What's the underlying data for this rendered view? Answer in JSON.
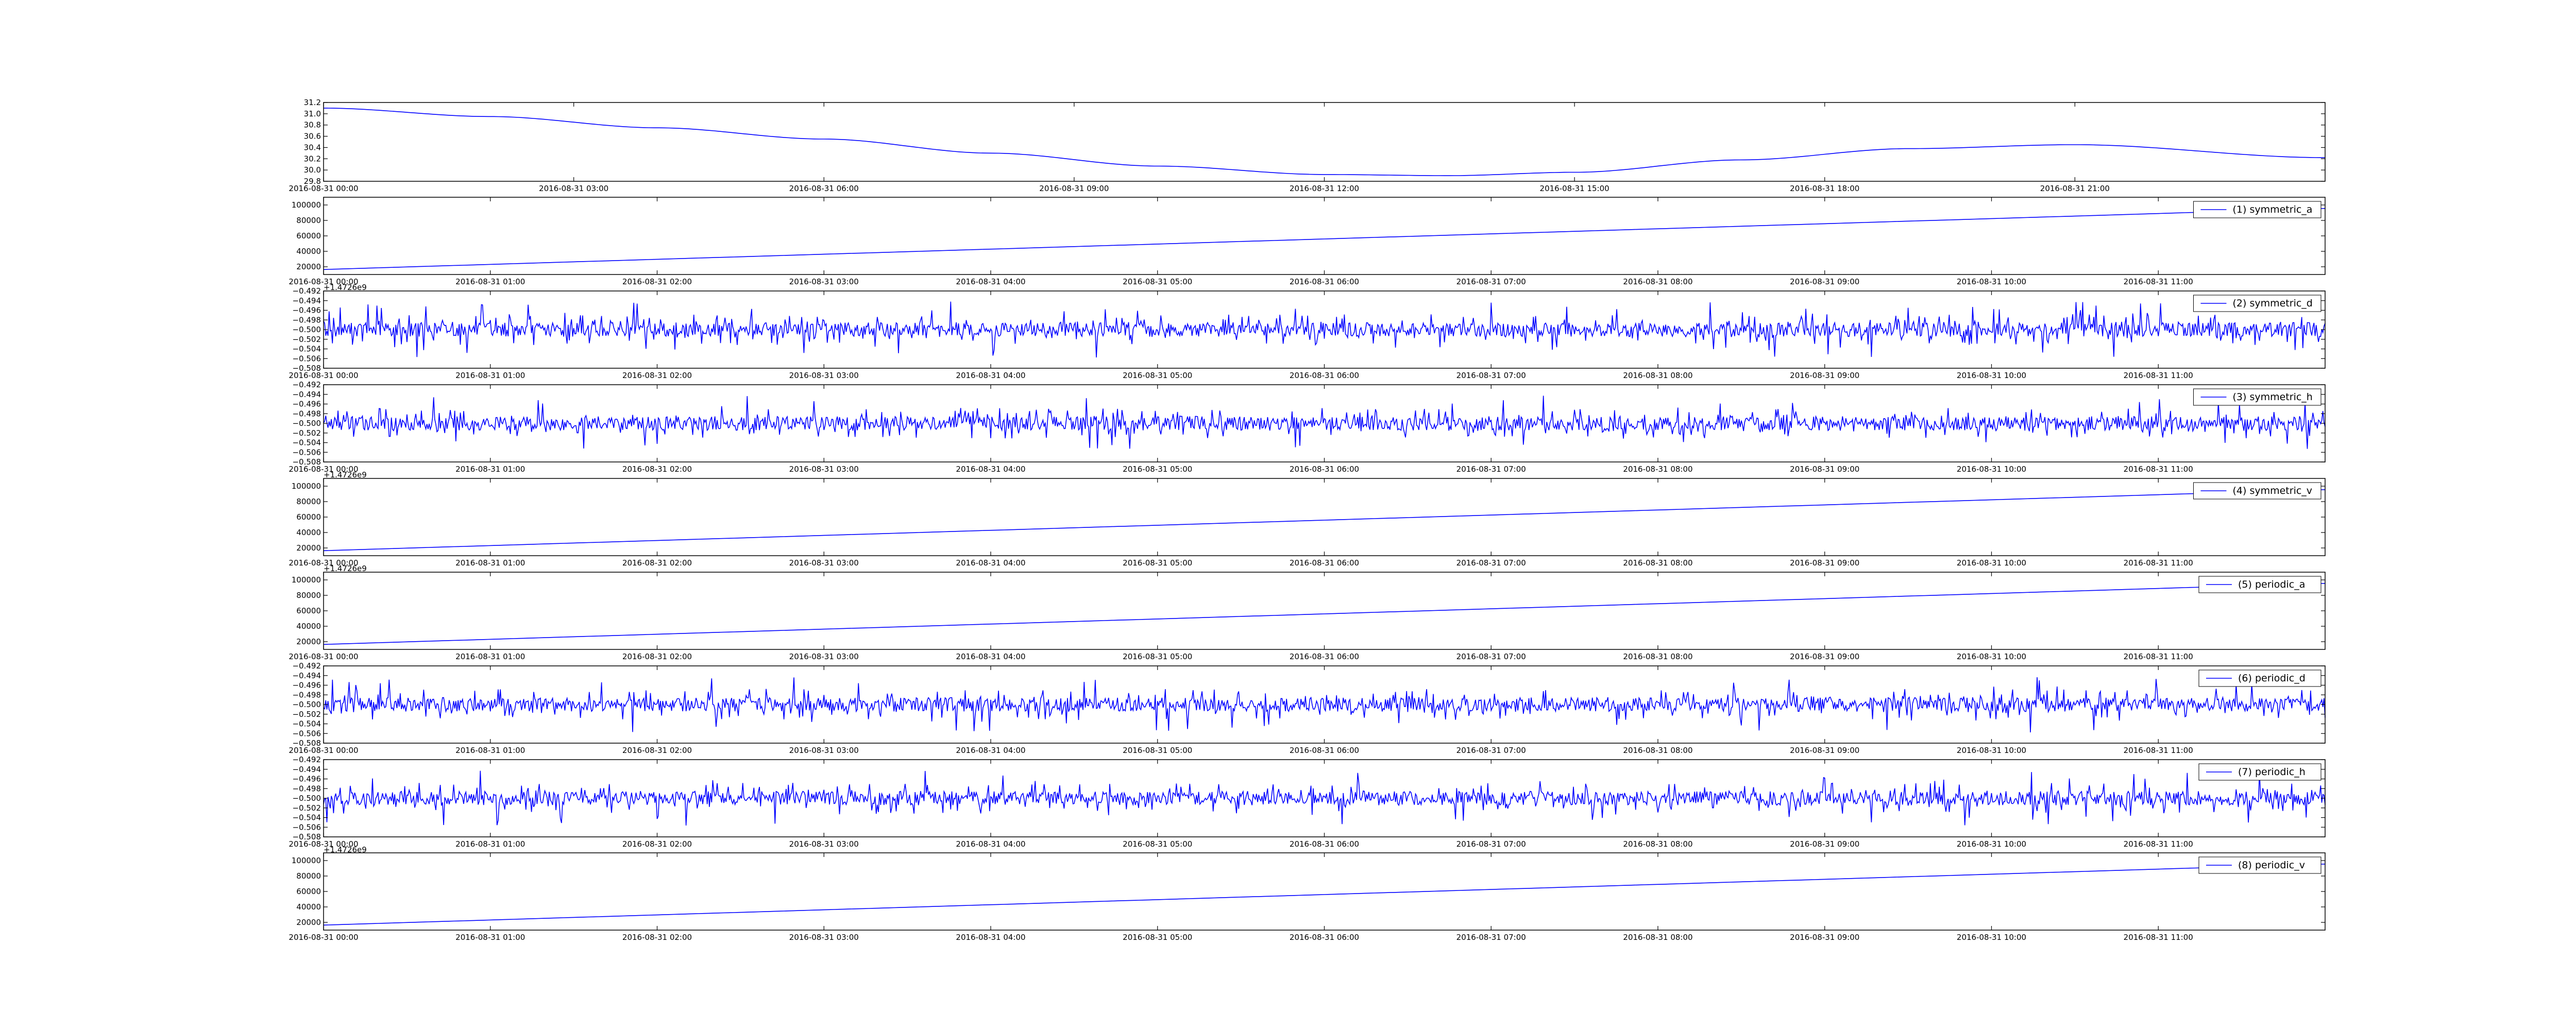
{
  "chart_data": [
    {
      "type": "line",
      "x_start": "2016-08-31 00:00",
      "x_end": "2016-09-01 00:00",
      "x_ticks": [
        "2016-08-31 00:00",
        "2016-08-31 03:00",
        "2016-08-31 06:00",
        "2016-08-31 09:00",
        "2016-08-31 12:00",
        "2016-08-31 15:00",
        "2016-08-31 18:00",
        "2016-08-31 21:00"
      ],
      "y_ticks": [
        "29.8",
        "30.0",
        "30.2",
        "30.4",
        "30.6",
        "30.8",
        "31.0",
        "31.2"
      ],
      "ylim": [
        29.8,
        31.2
      ],
      "offset_text": "",
      "series": [
        {
          "name": "",
          "color": "#0000ff",
          "x_hours": [
            0,
            2,
            4,
            6,
            8,
            10,
            12,
            13.5,
            15,
            17,
            19,
            21,
            24
          ],
          "y": [
            31.1,
            30.95,
            30.75,
            30.55,
            30.3,
            30.07,
            29.92,
            29.9,
            29.96,
            30.18,
            30.38,
            30.45,
            30.22
          ]
        }
      ],
      "legend": null
    },
    {
      "type": "line",
      "x_start": "2016-08-31 00:00",
      "x_end": "2016-08-31 12:00",
      "x_ticks": [
        "2016-08-31 00:00",
        "2016-08-31 01:00",
        "2016-08-31 02:00",
        "2016-08-31 03:00",
        "2016-08-31 04:00",
        "2016-08-31 05:00",
        "2016-08-31 06:00",
        "2016-08-31 07:00",
        "2016-08-31 08:00",
        "2016-08-31 09:00",
        "2016-08-31 10:00",
        "2016-08-31 11:00"
      ],
      "y_ticks": [
        "20000",
        "40000",
        "60000",
        "80000",
        "100000"
      ],
      "ylim": [
        10000,
        110000
      ],
      "offset_text": "+1.4726e9",
      "series": [
        {
          "name": "(1) symmetric_a",
          "color": "#0000ff",
          "x_hours": [
            0,
            12
          ],
          "y": [
            16500,
            95500
          ]
        }
      ],
      "legend": "top-right"
    },
    {
      "type": "line",
      "x_start": "2016-08-31 00:00",
      "x_end": "2016-08-31 12:00",
      "x_ticks": [
        "2016-08-31 00:00",
        "2016-08-31 01:00",
        "2016-08-31 02:00",
        "2016-08-31 03:00",
        "2016-08-31 04:00",
        "2016-08-31 05:00",
        "2016-08-31 06:00",
        "2016-08-31 07:00",
        "2016-08-31 08:00",
        "2016-08-31 09:00",
        "2016-08-31 10:00",
        "2016-08-31 11:00"
      ],
      "y_ticks": [
        "−0.508",
        "−0.506",
        "−0.504",
        "−0.502",
        "−0.500",
        "−0.498",
        "−0.496",
        "−0.494",
        "−0.492"
      ],
      "ylim": [
        -0.508,
        -0.492
      ],
      "offset_text": "",
      "series": [
        {
          "name": "(2) symmetric_d",
          "color": "#0000ff",
          "noise_center": -0.5,
          "noise_amplitude": 0.0058
        }
      ],
      "legend": "top-right"
    },
    {
      "type": "line",
      "x_start": "2016-08-31 00:00",
      "x_end": "2016-08-31 12:00",
      "x_ticks": [
        "2016-08-31 00:00",
        "2016-08-31 01:00",
        "2016-08-31 02:00",
        "2016-08-31 03:00",
        "2016-08-31 04:00",
        "2016-08-31 05:00",
        "2016-08-31 06:00",
        "2016-08-31 07:00",
        "2016-08-31 08:00",
        "2016-08-31 09:00",
        "2016-08-31 10:00",
        "2016-08-31 11:00"
      ],
      "y_ticks": [
        "−0.508",
        "−0.506",
        "−0.504",
        "−0.502",
        "−0.500",
        "−0.498",
        "−0.496",
        "−0.494",
        "−0.492"
      ],
      "ylim": [
        -0.508,
        -0.492
      ],
      "offset_text": "+1.4726e9",
      "series": [
        {
          "name": "(3) symmetric_h",
          "color": "#0000ff",
          "noise_center": -0.5,
          "noise_amplitude": 0.0058
        }
      ],
      "legend": "top-right"
    },
    {
      "type": "line",
      "x_start": "2016-08-31 00:00",
      "x_end": "2016-08-31 12:00",
      "x_ticks": [
        "2016-08-31 00:00",
        "2016-08-31 01:00",
        "2016-08-31 02:00",
        "2016-08-31 03:00",
        "2016-08-31 04:00",
        "2016-08-31 05:00",
        "2016-08-31 06:00",
        "2016-08-31 07:00",
        "2016-08-31 08:00",
        "2016-08-31 09:00",
        "2016-08-31 10:00",
        "2016-08-31 11:00"
      ],
      "y_ticks": [
        "20000",
        "40000",
        "60000",
        "80000",
        "100000"
      ],
      "ylim": [
        10000,
        110000
      ],
      "offset_text": "+1.4726e9",
      "series": [
        {
          "name": "(4) symmetric_v",
          "color": "#0000ff",
          "x_hours": [
            0,
            12
          ],
          "y": [
            16500,
            95500
          ]
        }
      ],
      "legend": "top-right"
    },
    {
      "type": "line",
      "x_start": "2016-08-31 00:00",
      "x_end": "2016-08-31 12:00",
      "x_ticks": [
        "2016-08-31 00:00",
        "2016-08-31 01:00",
        "2016-08-31 02:00",
        "2016-08-31 03:00",
        "2016-08-31 04:00",
        "2016-08-31 05:00",
        "2016-08-31 06:00",
        "2016-08-31 07:00",
        "2016-08-31 08:00",
        "2016-08-31 09:00",
        "2016-08-31 10:00",
        "2016-08-31 11:00"
      ],
      "y_ticks": [
        "20000",
        "40000",
        "60000",
        "80000",
        "100000"
      ],
      "ylim": [
        10000,
        110000
      ],
      "offset_text": "",
      "series": [
        {
          "name": "(5) periodic_a",
          "color": "#0000ff",
          "x_hours": [
            0,
            12
          ],
          "y": [
            16500,
            95500
          ]
        }
      ],
      "legend": "top-right"
    },
    {
      "type": "line",
      "x_start": "2016-08-31 00:00",
      "x_end": "2016-08-31 12:00",
      "x_ticks": [
        "2016-08-31 00:00",
        "2016-08-31 01:00",
        "2016-08-31 02:00",
        "2016-08-31 03:00",
        "2016-08-31 04:00",
        "2016-08-31 05:00",
        "2016-08-31 06:00",
        "2016-08-31 07:00",
        "2016-08-31 08:00",
        "2016-08-31 09:00",
        "2016-08-31 10:00",
        "2016-08-31 11:00"
      ],
      "y_ticks": [
        "−0.508",
        "−0.506",
        "−0.504",
        "−0.502",
        "−0.500",
        "−0.498",
        "−0.496",
        "−0.494",
        "−0.492"
      ],
      "ylim": [
        -0.508,
        -0.492
      ],
      "offset_text": "",
      "series": [
        {
          "name": "(6) periodic_d",
          "color": "#0000ff",
          "noise_center": -0.5,
          "noise_amplitude": 0.0058
        }
      ],
      "legend": "top-right"
    },
    {
      "type": "line",
      "x_start": "2016-08-31 00:00",
      "x_end": "2016-08-31 12:00",
      "x_ticks": [
        "2016-08-31 00:00",
        "2016-08-31 01:00",
        "2016-08-31 02:00",
        "2016-08-31 03:00",
        "2016-08-31 04:00",
        "2016-08-31 05:00",
        "2016-08-31 06:00",
        "2016-08-31 07:00",
        "2016-08-31 08:00",
        "2016-08-31 09:00",
        "2016-08-31 10:00",
        "2016-08-31 11:00"
      ],
      "y_ticks": [
        "−0.508",
        "−0.506",
        "−0.504",
        "−0.502",
        "−0.500",
        "−0.498",
        "−0.496",
        "−0.494",
        "−0.492"
      ],
      "ylim": [
        -0.508,
        -0.492
      ],
      "offset_text": "+1.4726e9",
      "series": [
        {
          "name": "(7) periodic_h",
          "color": "#0000ff",
          "noise_center": -0.5,
          "noise_amplitude": 0.0058
        }
      ],
      "legend": "top-right"
    },
    {
      "type": "line",
      "x_start": "2016-08-31 00:00",
      "x_end": "2016-08-31 12:00",
      "x_ticks": [
        "2016-08-31 00:00",
        "2016-08-31 01:00",
        "2016-08-31 02:00",
        "2016-08-31 03:00",
        "2016-08-31 04:00",
        "2016-08-31 05:00",
        "2016-08-31 06:00",
        "2016-08-31 07:00",
        "2016-08-31 08:00",
        "2016-08-31 09:00",
        "2016-08-31 10:00",
        "2016-08-31 11:00"
      ],
      "y_ticks": [
        "20000",
        "40000",
        "60000",
        "80000",
        "100000"
      ],
      "ylim": [
        10000,
        110000
      ],
      "offset_text": "",
      "series": [
        {
          "name": "(8) periodic_v",
          "color": "#0000ff",
          "x_hours": [
            0,
            12
          ],
          "y": [
            16500,
            95500
          ]
        }
      ],
      "legend": "top-right"
    }
  ]
}
